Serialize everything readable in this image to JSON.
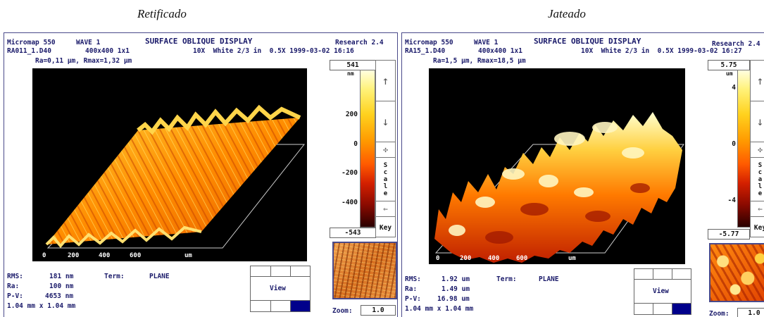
{
  "captions": {
    "left": "Retificado",
    "right": "Jateado"
  },
  "left": {
    "instrument": "Micromap 550",
    "wave": "WAVE 1",
    "display_title": "SURFACE OBLIQUE DISPLAY",
    "research": "Research 2.4",
    "file": "RA011_1.D40",
    "grid": "400x400 1x1",
    "optics": "10X  White 2/3 in  0.5X 1999-03-02 16:16",
    "roughness": "Ra=0,11 μm, Rmax=1,32 μm",
    "axis_ticks": [
      "0",
      "200",
      "400",
      "600"
    ],
    "axis_unit": "um",
    "scale_max": "541",
    "scale_unit": "nm",
    "scale_min": "-543",
    "scale_ticks": [
      "200",
      "0",
      "-200",
      "-400"
    ],
    "scale_label": "Scale",
    "key_label": "Key",
    "stats": {
      "rms_label": "RMS:",
      "rms": "181 nm",
      "ra_label": "Ra:",
      "ra": "100 nm",
      "pv_label": "P-V:",
      "pv": "4653 nm",
      "area": "1.04 mm x 1.04 mm",
      "term_label": "Term:",
      "term": "PLANE"
    },
    "view_label": "View",
    "zoom_label": "Zoom:",
    "zoom": "1.0"
  },
  "right": {
    "instrument": "Micromap 550",
    "wave": "WAVE 1",
    "display_title": "SURFACE OBLIQUE DISPLAY",
    "research": "Research 2.4",
    "file": "RA15_1.D40",
    "grid": "400x400 1x1",
    "optics": "10X  White 2/3 in  0.5X 1999-03-02 16:27",
    "roughness": "Ra=1,5 μm, Rmax=18,5 μm",
    "axis_ticks": [
      "0",
      "200",
      "400",
      "600"
    ],
    "axis_unit": "um",
    "scale_max": "5.75",
    "scale_unit": "um",
    "scale_min": "-5.77",
    "scale_ticks": [
      "4",
      "0",
      "-4"
    ],
    "scale_label": "Scale",
    "key_label": "Key",
    "stats": {
      "rms_label": "RMS:",
      "rms": "1.92 um",
      "ra_label": "Ra:",
      "ra": "1.49 um",
      "pv_label": "P-V:",
      "pv": "16.98 um",
      "area": "1.04 mm x 1.04 mm",
      "term_label": "Term:",
      "term": "PLANE"
    },
    "view_label": "View",
    "zoom_label": "Zoom:",
    "zoom": "1.0"
  },
  "colors": {
    "frame": "#4a4a8a",
    "text": "#1a1a6a",
    "selected_cell": "#00008b"
  }
}
